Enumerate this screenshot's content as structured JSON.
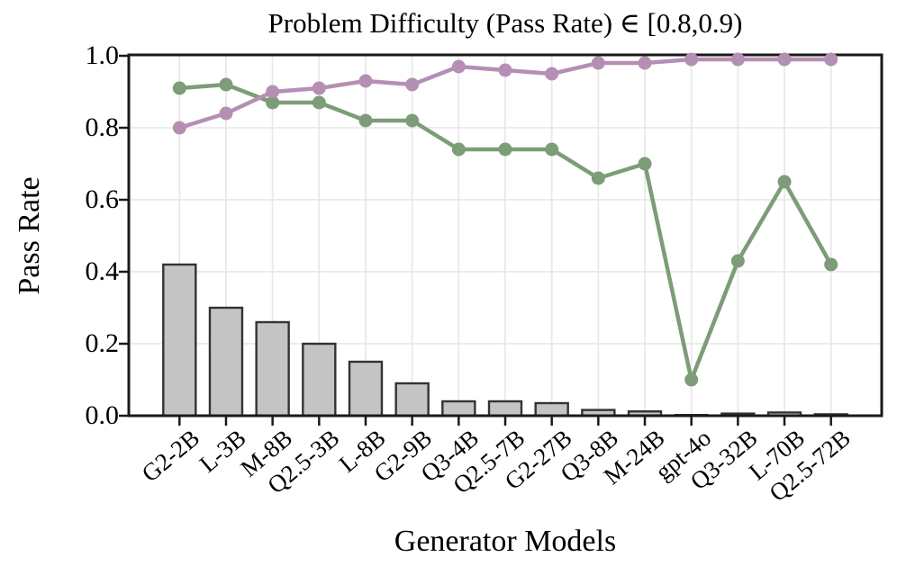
{
  "title": "Problem Difficulty (Pass Rate) ∈ [0.8,0.9)",
  "axes": {
    "ylabel": "Pass Rate",
    "xlabel": "Generator Models",
    "ytick_labels": [
      "0.0",
      "0.2",
      "0.4",
      "0.6",
      "0.8",
      "1.0"
    ]
  },
  "colors": {
    "bar_fill": "#C4C4C4",
    "bar_edge": "#333333",
    "green_line": "#7D9C78",
    "purple_line": "#B48FB3",
    "grid": "#E9E9E9",
    "spine": "#1A1A1A",
    "background": "#FFFFFF"
  },
  "chart_data": {
    "type": "bar",
    "title": "Problem Difficulty (Pass Rate) ∈ [0.8,0.9)",
    "xlabel": "Generator Models",
    "ylabel": "Pass Rate",
    "ylim": [
      0.0,
      1.0
    ],
    "yticks": [
      0.0,
      0.2,
      0.4,
      0.6,
      0.8,
      1.0
    ],
    "grid": true,
    "legend": "none",
    "categories": [
      "G2-2B",
      "L-3B",
      "M-8B",
      "Q2.5-3B",
      "L-8B",
      "G2-9B",
      "Q3-4B",
      "Q2.5-7B",
      "G2-27B",
      "Q3-8B",
      "M-24B",
      "gpt-4o",
      "Q3-32B",
      "L-70B",
      "Q2.5-72B"
    ],
    "series": [
      {
        "name": "gray-bars",
        "type": "bar",
        "color": "#C4C4C4",
        "values": [
          0.42,
          0.3,
          0.26,
          0.2,
          0.15,
          0.09,
          0.04,
          0.04,
          0.035,
          0.016,
          0.012,
          0.002,
          0.006,
          0.009,
          0.004
        ]
      },
      {
        "name": "green-line",
        "type": "line",
        "color": "#7D9C78",
        "values": [
          0.91,
          0.92,
          0.87,
          0.87,
          0.82,
          0.82,
          0.74,
          0.74,
          0.74,
          0.66,
          0.7,
          0.1,
          0.43,
          0.65,
          0.42
        ]
      },
      {
        "name": "purple-line",
        "type": "line",
        "color": "#B48FB3",
        "values": [
          0.8,
          0.84,
          0.9,
          0.91,
          0.93,
          0.92,
          0.97,
          0.96,
          0.95,
          0.98,
          0.98,
          0.99,
          0.99,
          0.99,
          0.99
        ]
      }
    ]
  }
}
